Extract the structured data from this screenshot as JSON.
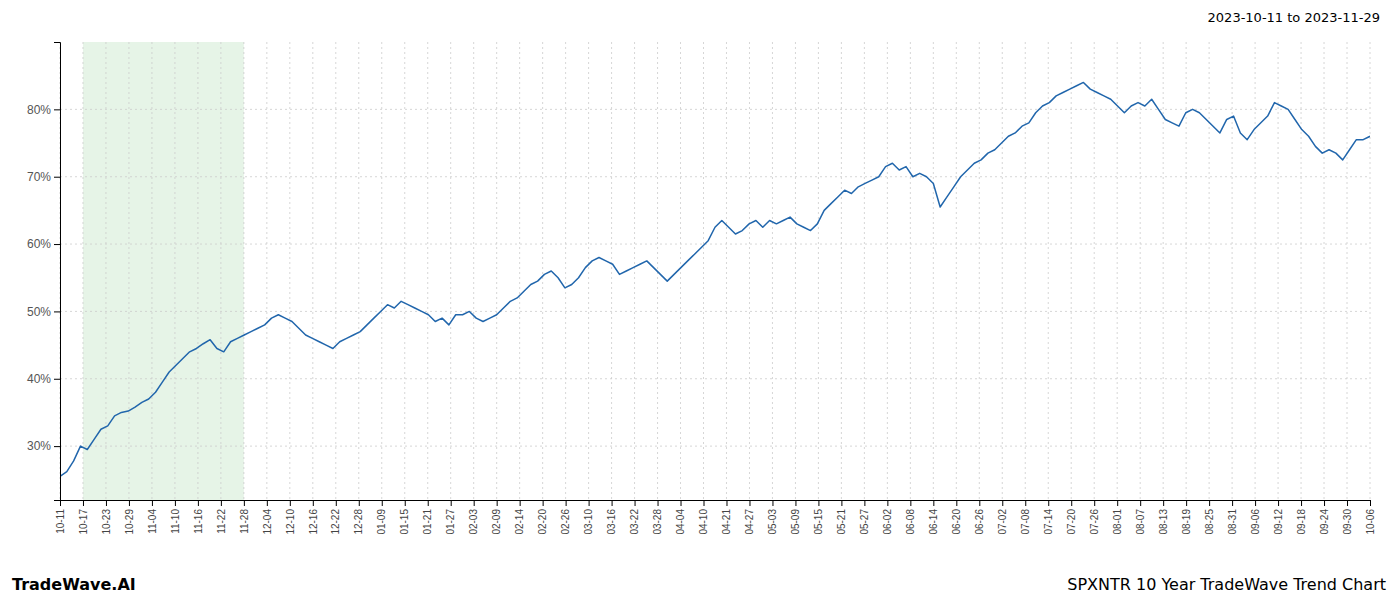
{
  "chart_data": {
    "type": "line",
    "title": "2023-10-11 to 2023-11-29",
    "annotations": [
      "TradeWave.AI",
      "SPXNTR 10 Year TradeWave Trend Chart"
    ],
    "color": "#2166ac",
    "grid": true,
    "xlim": [
      0,
      192
    ],
    "xticks": [
      {
        "value": 0,
        "label": "10-11"
      },
      {
        "value": 3.368421,
        "label": "10-17"
      },
      {
        "value": 6.736842,
        "label": "10-23"
      },
      {
        "value": 10.105263,
        "label": "10-29"
      },
      {
        "value": 13.473684,
        "label": "11-04"
      },
      {
        "value": 16.842105,
        "label": "11-10"
      },
      {
        "value": 20.210526,
        "label": "11-16"
      },
      {
        "value": 23.578947,
        "label": "11-22"
      },
      {
        "value": 26.947368,
        "label": "11-28"
      },
      {
        "value": 30.315789,
        "label": "12-04"
      },
      {
        "value": 33.684211,
        "label": "12-10"
      },
      {
        "value": 37.052632,
        "label": "12-16"
      },
      {
        "value": 40.421053,
        "label": "12-22"
      },
      {
        "value": 43.789474,
        "label": "12-28"
      },
      {
        "value": 47.157895,
        "label": "01-09"
      },
      {
        "value": 50.526316,
        "label": "01-15"
      },
      {
        "value": 53.894737,
        "label": "01-21"
      },
      {
        "value": 57.263158,
        "label": "01-27"
      },
      {
        "value": 60.631579,
        "label": "02-03"
      },
      {
        "value": 64,
        "label": "02-09"
      },
      {
        "value": 67.368421,
        "label": "02-14"
      },
      {
        "value": 70.736842,
        "label": "02-20"
      },
      {
        "value": 74.105263,
        "label": "02-26"
      },
      {
        "value": 77.473684,
        "label": "03-10"
      },
      {
        "value": 80.842105,
        "label": "03-16"
      },
      {
        "value": 84.210526,
        "label": "03-22"
      },
      {
        "value": 87.578947,
        "label": "03-28"
      },
      {
        "value": 90.947368,
        "label": "04-04"
      },
      {
        "value": 94.315789,
        "label": "04-10"
      },
      {
        "value": 97.684211,
        "label": "04-21"
      },
      {
        "value": 101.052632,
        "label": "04-27"
      },
      {
        "value": 104.421053,
        "label": "05-03"
      },
      {
        "value": 107.789474,
        "label": "05-09"
      },
      {
        "value": 111.157895,
        "label": "05-15"
      },
      {
        "value": 114.526316,
        "label": "05-21"
      },
      {
        "value": 117.894737,
        "label": "05-27"
      },
      {
        "value": 121.263158,
        "label": "06-02"
      },
      {
        "value": 124.631579,
        "label": "06-08"
      },
      {
        "value": 128,
        "label": "06-14"
      },
      {
        "value": 131.368421,
        "label": "06-20"
      },
      {
        "value": 134.736842,
        "label": "06-26"
      },
      {
        "value": 138.105263,
        "label": "07-02"
      },
      {
        "value": 141.473684,
        "label": "07-08"
      },
      {
        "value": 144.842105,
        "label": "07-14"
      },
      {
        "value": 148.210526,
        "label": "07-20"
      },
      {
        "value": 151.578947,
        "label": "07-26"
      },
      {
        "value": 154.947368,
        "label": "08-01"
      },
      {
        "value": 158.315789,
        "label": "08-07"
      },
      {
        "value": 161.684211,
        "label": "08-13"
      },
      {
        "value": 165.052632,
        "label": "08-19"
      },
      {
        "value": 168.421053,
        "label": "08-25"
      },
      {
        "value": 171.789474,
        "label": "08-31"
      },
      {
        "value": 175.157895,
        "label": "09-06"
      },
      {
        "value": 178.526316,
        "label": "09-12"
      },
      {
        "value": 181.894737,
        "label": "09-18"
      },
      {
        "value": 185.263158,
        "label": "09-24"
      },
      {
        "value": 188.631579,
        "label": "09-30"
      },
      {
        "value": 192,
        "label": "10-06"
      }
    ],
    "ylim": [
      22,
      90
    ],
    "yticks": [
      {
        "value": 30,
        "label": "30%"
      },
      {
        "value": 40,
        "label": "40%"
      },
      {
        "value": 50,
        "label": "50%"
      },
      {
        "value": 60,
        "label": "60%"
      },
      {
        "value": 70,
        "label": "70%"
      },
      {
        "value": 80,
        "label": "80%"
      }
    ],
    "spans": [
      {
        "start": 3.368421,
        "end": 26.947368,
        "color": "#c8e6c9"
      }
    ],
    "x": [
      0,
      1,
      2,
      3,
      4,
      5,
      6,
      7,
      8,
      9,
      10,
      11,
      12,
      13,
      14,
      15,
      16,
      17,
      18,
      19,
      20,
      21,
      22,
      23,
      24,
      25,
      26,
      27,
      28,
      29,
      30,
      31,
      32,
      33,
      34,
      35,
      36,
      37,
      38,
      39,
      40,
      41,
      42,
      43,
      44,
      45,
      46,
      47,
      48,
      49,
      50,
      51,
      52,
      53,
      54,
      55,
      56,
      57,
      58,
      59,
      60,
      61,
      62,
      63,
      64,
      65,
      66,
      67,
      68,
      69,
      70,
      71,
      72,
      73,
      74,
      75,
      76,
      77,
      78,
      79,
      80,
      81,
      82,
      83,
      84,
      85,
      86,
      87,
      88,
      89,
      90,
      91,
      92,
      93,
      94,
      95,
      96,
      97,
      98,
      99,
      100,
      101,
      102,
      103,
      104,
      105,
      106,
      107,
      108,
      109,
      110,
      111,
      112,
      113,
      114,
      115,
      116,
      117,
      118,
      119,
      120,
      121,
      122,
      123,
      124,
      125,
      126,
      127,
      128,
      129,
      130,
      131,
      132,
      133,
      134,
      135,
      136,
      137,
      138,
      139,
      140,
      141,
      142,
      143,
      144,
      145,
      146,
      147,
      148,
      149,
      150,
      151,
      152,
      153,
      154,
      155,
      156,
      157,
      158,
      159,
      160,
      161,
      162,
      163,
      164,
      165,
      166,
      167,
      168,
      169,
      170,
      171,
      172,
      173,
      174,
      175,
      176,
      177,
      178,
      179,
      180,
      181,
      182,
      183,
      184,
      185,
      186,
      187,
      188,
      189,
      190,
      191,
      192
    ],
    "values": [
      25.5,
      26.2,
      27.8,
      30.0,
      29.5,
      31.0,
      32.5,
      33.0,
      34.5,
      35.0,
      35.2,
      35.8,
      36.5,
      37.0,
      38.0,
      39.5,
      41.0,
      42.0,
      43.0,
      44.0,
      44.5,
      45.2,
      45.8,
      44.5,
      44.0,
      45.5,
      46.0,
      46.5,
      47.0,
      47.5,
      48.0,
      49.0,
      49.5,
      49.0,
      48.5,
      47.5,
      46.5,
      46.0,
      45.5,
      45.0,
      44.5,
      45.5,
      46.0,
      46.5,
      47.0,
      48.0,
      49.0,
      50.0,
      51.0,
      50.5,
      51.5,
      51.0,
      50.5,
      50.0,
      49.5,
      48.5,
      49.0,
      48.0,
      49.5,
      49.5,
      50.0,
      49.0,
      48.5,
      49.0,
      49.5,
      50.5,
      51.5,
      52.0,
      53.0,
      54.0,
      54.5,
      55.5,
      56.0,
      55.0,
      53.5,
      54.0,
      55.0,
      56.5,
      57.5,
      58.0,
      57.5,
      57.0,
      55.5,
      56.0,
      56.5,
      57.0,
      57.5,
      56.5,
      55.5,
      54.5,
      55.5,
      56.5,
      57.5,
      58.5,
      59.5,
      60.5,
      62.5,
      63.5,
      62.5,
      61.5,
      62.0,
      63.0,
      63.5,
      62.5,
      63.5,
      63.0,
      63.5,
      64.0,
      63.0,
      62.5,
      62.0,
      63.0,
      65.0,
      66.0,
      67.0,
      68.0,
      67.5,
      68.5,
      69.0,
      69.5,
      70.0,
      71.5,
      72.0,
      71.0,
      71.5,
      70.0,
      70.5,
      70.0,
      69.0,
      65.5,
      67.0,
      68.5,
      70.0,
      71.0,
      72.0,
      72.5,
      73.5,
      74.0,
      75.0,
      76.0,
      76.5,
      77.5,
      78.0,
      79.5,
      80.5,
      81.0,
      82.0,
      82.5,
      83.0,
      83.5,
      84.0,
      83.0,
      82.5,
      82.0,
      81.5,
      80.5,
      79.5,
      80.5,
      81.0,
      80.5,
      81.5,
      80.0,
      78.5,
      78.0,
      77.5,
      79.5,
      80.0,
      79.5,
      78.5,
      77.5,
      76.5,
      78.5,
      79.0,
      76.5,
      75.5,
      77.0,
      78.0,
      79.0,
      81.0,
      80.5,
      80.0,
      78.5,
      77.0,
      76.0,
      74.5,
      73.5,
      74.0,
      73.5,
      72.5,
      74.0,
      75.5,
      75.5,
      76.0
    ]
  }
}
